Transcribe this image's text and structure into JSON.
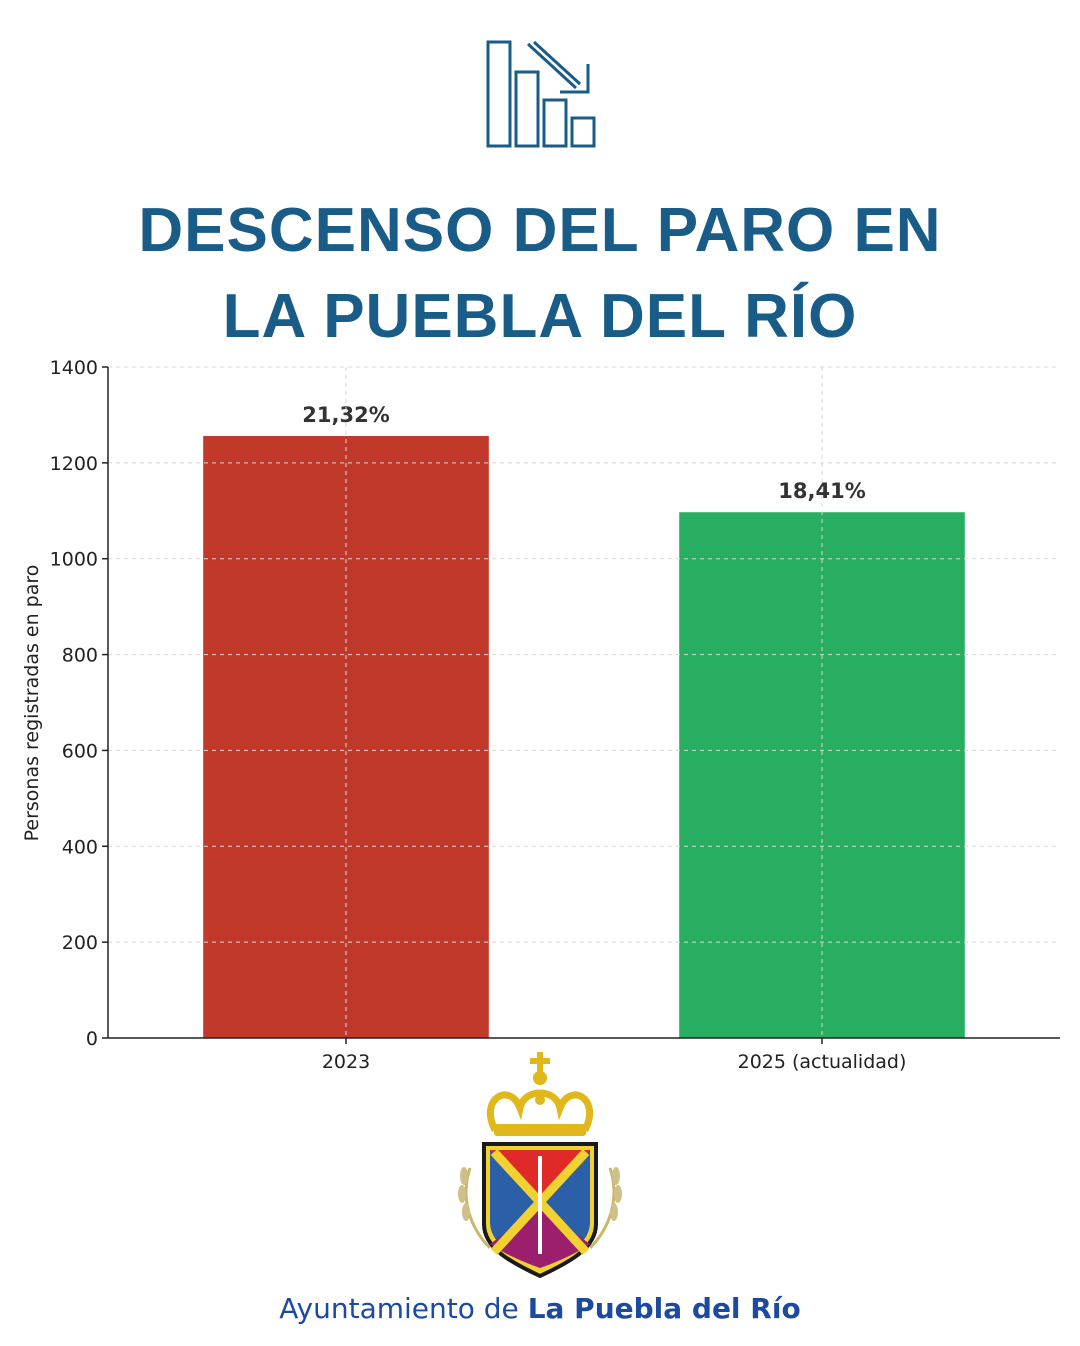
{
  "header": {
    "icon": "declining-bar-chart-icon",
    "title_line1": "DESCENSO DEL PARO EN",
    "title_line2": "LA PUEBLA DEL RÍO",
    "title_color": "#1a5c88"
  },
  "chart_data": {
    "type": "bar",
    "categories": [
      "2023",
      "2025 (actualidad)"
    ],
    "values": [
      1256,
      1097
    ],
    "data_labels": [
      "21,32%",
      "18,41%"
    ],
    "colors": [
      "#c0392b",
      "#27ae60"
    ],
    "ylabel": "Personas registradas en paro",
    "ylim": [
      0,
      1400
    ],
    "yticks": [
      0,
      200,
      400,
      600,
      800,
      1000,
      1200,
      1400
    ],
    "grid": true
  },
  "footer": {
    "crest": "coat-of-arms-crest",
    "text_prefix": "Ayuntamiento de ",
    "text_bold": "La Puebla del Río",
    "color": "#1b4aa0"
  }
}
